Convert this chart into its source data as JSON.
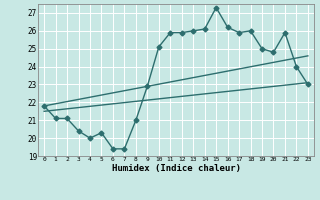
{
  "xlabel": "Humidex (Indice chaleur)",
  "xlim": [
    -0.5,
    23.5
  ],
  "ylim": [
    19,
    27.5
  ],
  "yticks": [
    19,
    20,
    21,
    22,
    23,
    24,
    25,
    26,
    27
  ],
  "xticks": [
    0,
    1,
    2,
    3,
    4,
    5,
    6,
    7,
    8,
    9,
    10,
    11,
    12,
    13,
    14,
    15,
    16,
    17,
    18,
    19,
    20,
    21,
    22,
    23
  ],
  "bg_color": "#c8e8e4",
  "grid_color": "#ffffff",
  "line_color": "#2d6e6e",
  "line1_x": [
    0,
    1,
    2,
    3,
    4,
    5,
    6,
    7,
    8,
    9,
    10,
    11,
    12,
    13,
    14,
    15,
    16,
    17,
    18,
    19,
    20,
    21,
    22,
    23
  ],
  "line1_y": [
    21.8,
    21.1,
    21.1,
    20.4,
    20.0,
    20.3,
    19.4,
    19.4,
    21.0,
    22.9,
    25.1,
    25.9,
    25.9,
    26.0,
    26.1,
    27.3,
    26.2,
    25.9,
    26.0,
    25.0,
    24.8,
    25.9,
    24.0,
    23.0
  ],
  "line2_x": [
    0,
    23
  ],
  "line2_y": [
    21.5,
    23.1
  ],
  "line3_x": [
    0,
    23
  ],
  "line3_y": [
    21.8,
    24.6
  ],
  "marker": "D",
  "markersize": 2.5,
  "linewidth": 1.0
}
